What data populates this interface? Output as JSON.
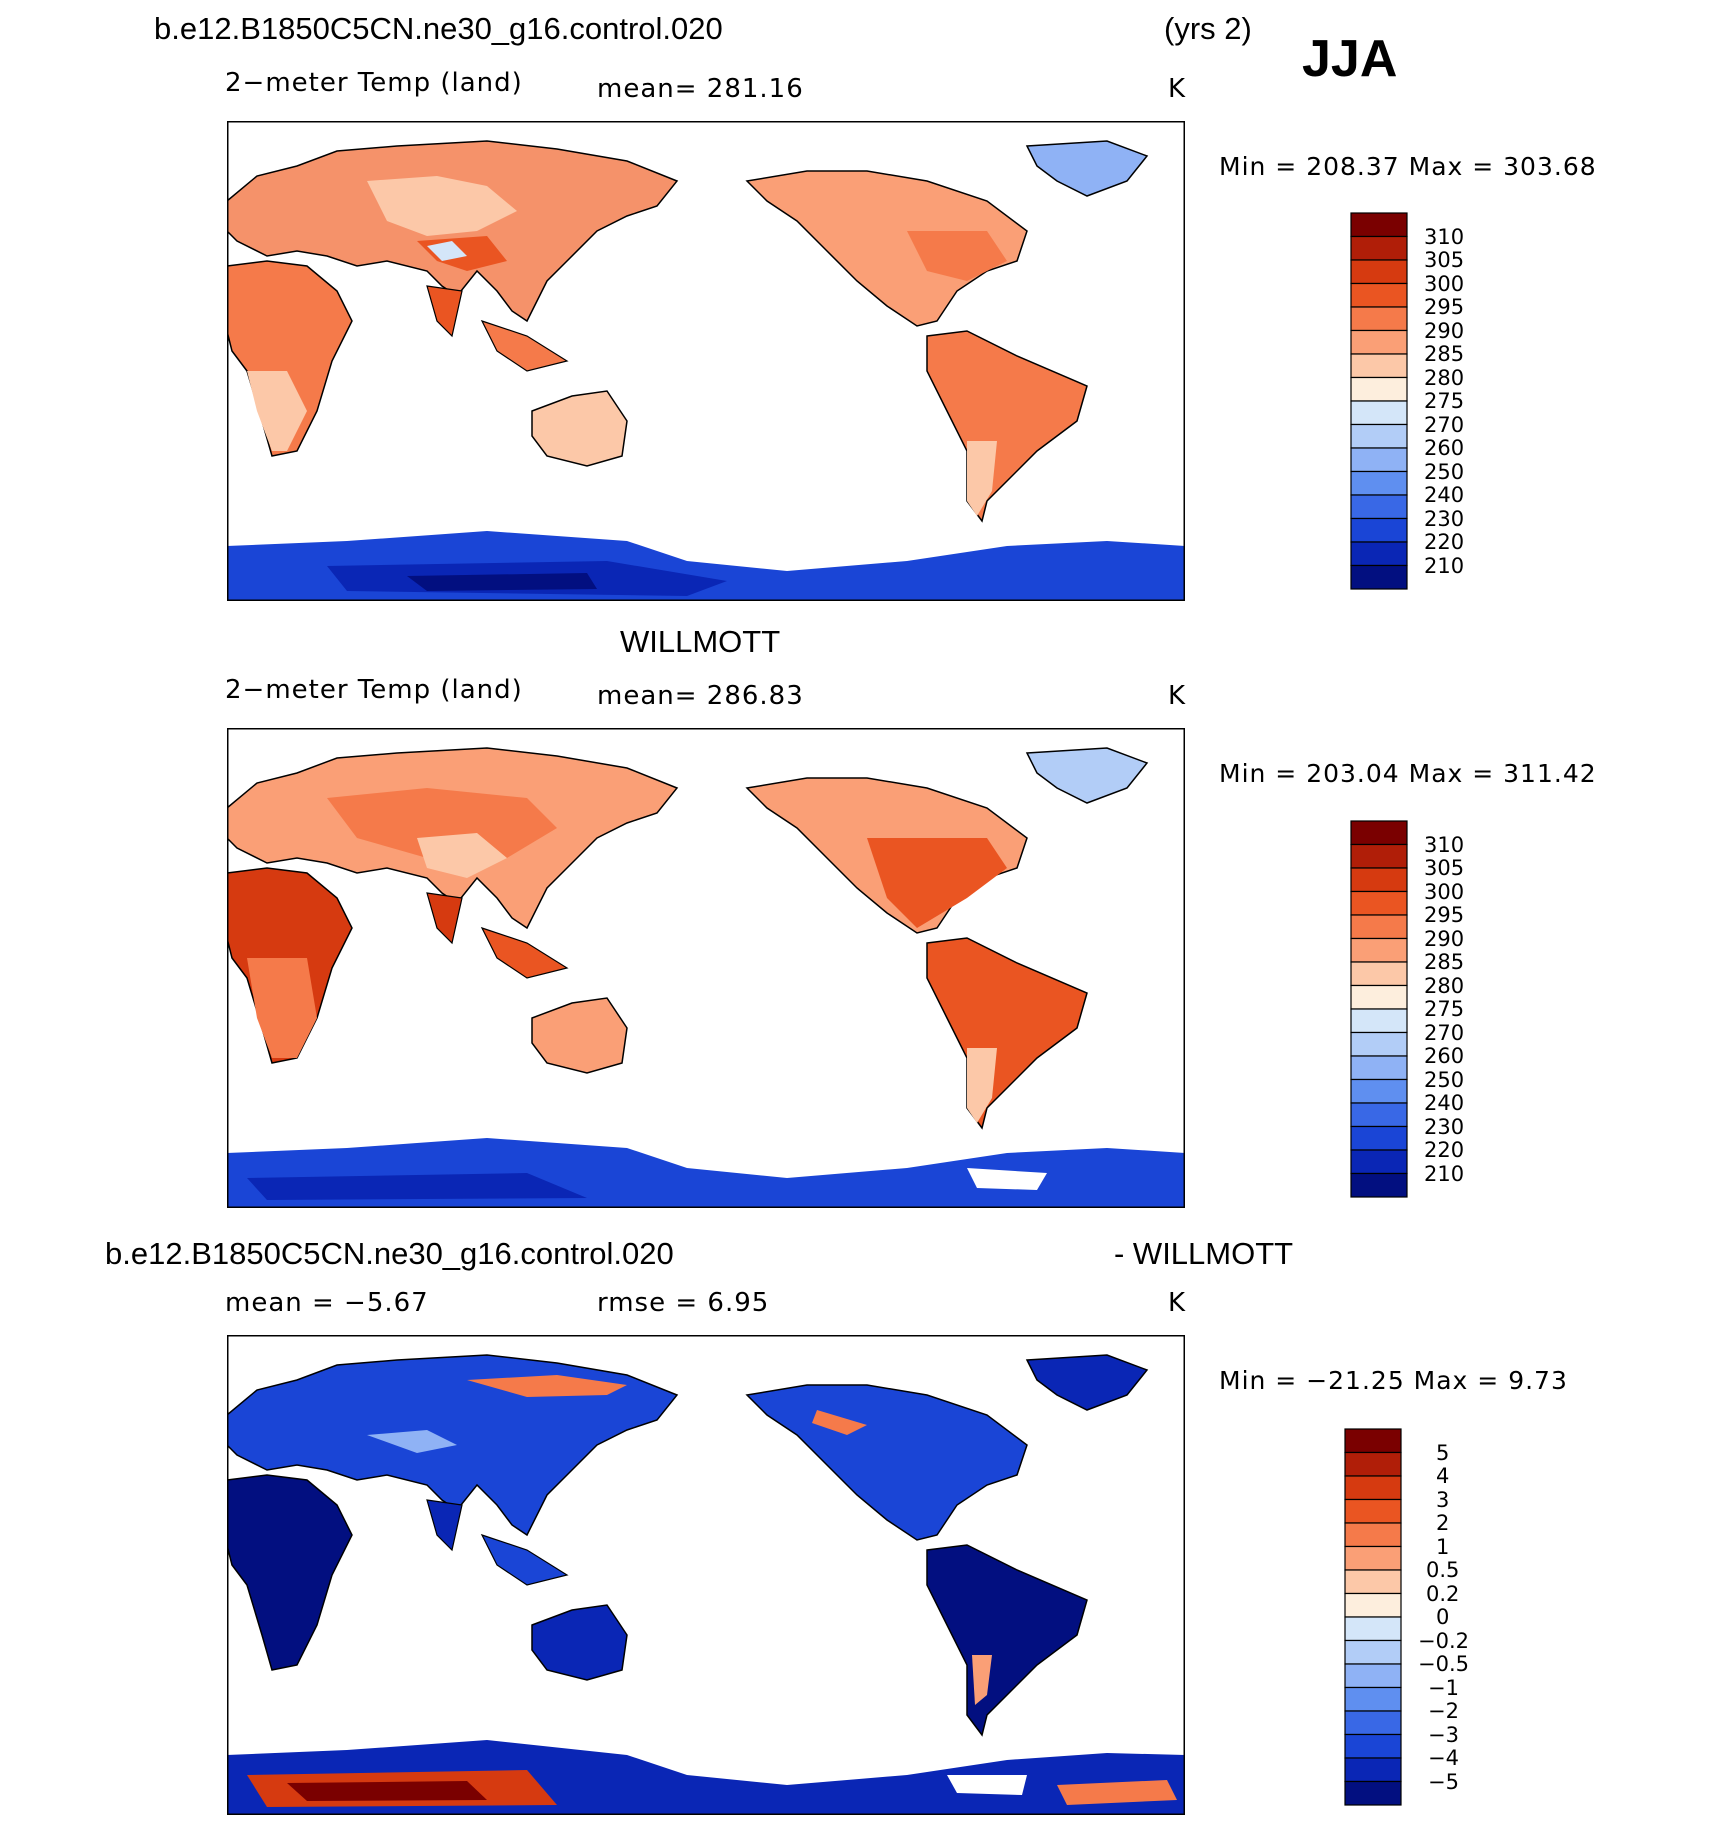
{
  "header": {
    "case_name": "b.e12.B1850C5CN.ne30_g16.control.020",
    "years": "(yrs 2)",
    "season": "JJA"
  },
  "panels": [
    {
      "title": "",
      "variable": "2−meter Temp (land)",
      "mean_text": "mean=  281.16",
      "units": "K",
      "minmax": "Min  =  208.37  Max  =  303.68",
      "colorbar_labels": [
        "310",
        "305",
        "300",
        "295",
        "290",
        "285",
        "280",
        "275",
        "270",
        "260",
        "250",
        "240",
        "230",
        "220",
        "210"
      ],
      "palette": "abs"
    },
    {
      "title": "WILLMOTT",
      "variable": "2−meter Temp (land)",
      "mean_text": "mean=  286.83",
      "units": "K",
      "minmax": "Min  =  203.04  Max  =  311.42",
      "colorbar_labels": [
        "310",
        "305",
        "300",
        "295",
        "290",
        "285",
        "280",
        "275",
        "270",
        "260",
        "250",
        "240",
        "230",
        "220",
        "210"
      ],
      "palette": "abs"
    },
    {
      "title_left": "b.e12.B1850C5CN.ne30_g16.control.020",
      "title_right": "- WILLMOTT",
      "mean_text": "mean  =    −5.67",
      "rmse_text": "rmse  =     6.95",
      "units": "K",
      "minmax": "Min  =  −21.25  Max  =      9.73",
      "colorbar_labels": [
        "5",
        "4",
        "3",
        "2",
        "1",
        "0.5",
        "0.2",
        "0",
        "−0.2",
        "−0.5",
        "−1",
        "−2",
        "−3",
        "−4",
        "−5"
      ],
      "palette": "diff"
    }
  ],
  "colors": {
    "abs_palette": [
      "#7a0000",
      "#b01e08",
      "#d63a10",
      "#ea5522",
      "#f57a4a",
      "#fa9f76",
      "#fcc8a8",
      "#fdeedd",
      "#d4e6f9",
      "#b2cdf7",
      "#8fb2f5",
      "#5f8ff0",
      "#3968e6",
      "#1a45d6",
      "#0a26b5",
      "#020f80"
    ],
    "diff_palette": [
      "#7a0000",
      "#b01e08",
      "#d63a10",
      "#ea5522",
      "#f57a4a",
      "#fa9f76",
      "#fcc8a8",
      "#fdeedd",
      "#d4e6f9",
      "#b2cdf7",
      "#8fb2f5",
      "#5f8ff0",
      "#3968e6",
      "#1a45d6",
      "#0a26b5",
      "#020f80"
    ]
  }
}
